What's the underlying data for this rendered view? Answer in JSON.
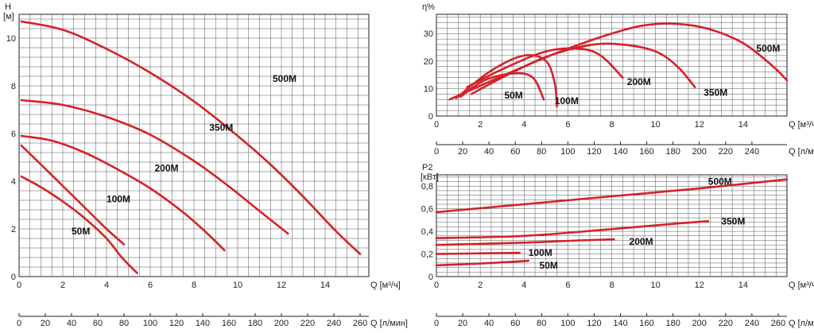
{
  "colors": {
    "curve": "#d62128",
    "grid": "#555555",
    "axis": "#222222",
    "background": "#ffffff"
  },
  "chart_data": [
    {
      "id": "head",
      "type": "line",
      "ylabel": "H",
      "yunit": "[м]",
      "xlabel": "Q [м³/ч]",
      "x2label": "Q [л/мин]",
      "xlim": [
        0,
        16
      ],
      "ylim": [
        0,
        11
      ],
      "x_ticks": [
        0,
        2,
        4,
        6,
        8,
        10,
        12,
        14
      ],
      "y_ticks": [
        0,
        2,
        4,
        6,
        8,
        10
      ],
      "x2_ticks": [
        0,
        20,
        40,
        60,
        80,
        100,
        120,
        140,
        160,
        180,
        200,
        220,
        240,
        260
      ],
      "x2_factor": 16.6667,
      "grid": true,
      "series": [
        {
          "name": "500M",
          "label_at": [
            11.6,
            8.3
          ],
          "points": [
            [
              0.1,
              10.7
            ],
            [
              2,
              10.35
            ],
            [
              4,
              9.55
            ],
            [
              6,
              8.55
            ],
            [
              8,
              7.35
            ],
            [
              10,
              5.9
            ],
            [
              11.5,
              4.7
            ],
            [
              13,
              3.35
            ],
            [
              14.5,
              1.9
            ],
            [
              15.6,
              0.95
            ]
          ]
        },
        {
          "name": "350M",
          "label_at": [
            8.7,
            6.25
          ],
          "points": [
            [
              0.1,
              7.4
            ],
            [
              2,
              7.2
            ],
            [
              4,
              6.7
            ],
            [
              6,
              5.95
            ],
            [
              8,
              4.85
            ],
            [
              9.5,
              3.85
            ],
            [
              11,
              2.75
            ],
            [
              12.3,
              1.8
            ]
          ]
        },
        {
          "name": "200M",
          "label_at": [
            6.2,
            4.55
          ],
          "points": [
            [
              0.1,
              5.9
            ],
            [
              1.5,
              5.7
            ],
            [
              3,
              5.2
            ],
            [
              4.5,
              4.5
            ],
            [
              6,
              3.7
            ],
            [
              7.5,
              2.7
            ],
            [
              8.5,
              1.9
            ],
            [
              9.4,
              1.1
            ]
          ]
        },
        {
          "name": "100M",
          "label_at": [
            4.0,
            3.25
          ],
          "points": [
            [
              0.1,
              5.5
            ],
            [
              1,
              4.7
            ],
            [
              2,
              3.8
            ],
            [
              3,
              2.9
            ],
            [
              4,
              2.0
            ],
            [
              4.8,
              1.35
            ]
          ]
        },
        {
          "name": "50M",
          "label_at": [
            2.4,
            1.9
          ],
          "points": [
            [
              0.1,
              4.2
            ],
            [
              1,
              3.75
            ],
            [
              2,
              3.15
            ],
            [
              3,
              2.45
            ],
            [
              4,
              1.6
            ],
            [
              4.7,
              0.8
            ],
            [
              5.4,
              0.15
            ]
          ]
        }
      ]
    },
    {
      "id": "efficiency",
      "type": "line",
      "ylabel": "η%",
      "xlabel": "Q [м³/ч]",
      "x2label": "Q [л/мин]",
      "xlim": [
        0,
        16
      ],
      "ylim": [
        0,
        37
      ],
      "x_ticks": [
        0,
        2,
        4,
        6,
        8,
        10,
        12,
        14
      ],
      "y_ticks": [
        0,
        10,
        20,
        30
      ],
      "x2_ticks": [
        0,
        20,
        40,
        60,
        80,
        100,
        120,
        140,
        160,
        180,
        200,
        220,
        240
      ],
      "x2_factor": 16.6667,
      "grid": true,
      "series": [
        {
          "name": "500M",
          "label_at": [
            14.6,
            24.5
          ],
          "points": [
            [
              0.6,
              6
            ],
            [
              2,
              11
            ],
            [
              4,
              18
            ],
            [
              6,
              24.5
            ],
            [
              8,
              30
            ],
            [
              9.5,
              33
            ],
            [
              11,
              33.5
            ],
            [
              12.5,
              31.5
            ],
            [
              14,
              26.5
            ],
            [
              15.3,
              18.5
            ],
            [
              16,
              13
            ]
          ]
        },
        {
          "name": "350M",
          "label_at": [
            12.2,
            8.5
          ],
          "points": [
            [
              1.6,
              8
            ],
            [
              3,
              14
            ],
            [
              5,
              21.5
            ],
            [
              7,
              25.8
            ],
            [
              8.5,
              26
            ],
            [
              10,
              23.5
            ],
            [
              11,
              18
            ],
            [
              11.8,
              10.5
            ]
          ]
        },
        {
          "name": "200M",
          "label_at": [
            8.7,
            12.5
          ],
          "points": [
            [
              1.4,
              10.5
            ],
            [
              3,
              17
            ],
            [
              5,
              23.5
            ],
            [
              6.5,
              24.5
            ],
            [
              7.5,
              22
            ],
            [
              8.5,
              14
            ]
          ]
        },
        {
          "name": "100M",
          "label_at": [
            5.4,
            5.5
          ],
          "points": [
            [
              0.9,
              6.5
            ],
            [
              2.5,
              16.5
            ],
            [
              4,
              22
            ],
            [
              5,
              20
            ],
            [
              5.4,
              12
            ],
            [
              5.5,
              3.5
            ]
          ]
        },
        {
          "name": "50M",
          "label_at": [
            3.1,
            7.5
          ],
          "points": [
            [
              1.1,
              7
            ],
            [
              2.2,
              13
            ],
            [
              3.5,
              15.5
            ],
            [
              4.4,
              14
            ],
            [
              4.9,
              6
            ]
          ]
        }
      ]
    },
    {
      "id": "power",
      "type": "line",
      "ylabel": "P2",
      "yunit": "[кВт]",
      "xlabel": "Q [м³/ч]",
      "x2label": "Q [л/мин]",
      "xlim": [
        0,
        16
      ],
      "ylim": [
        0,
        0.9
      ],
      "x_ticks": [
        0,
        2,
        4,
        6,
        8,
        10,
        12,
        14
      ],
      "y_ticks": [
        0,
        0.2,
        0.4,
        0.6,
        0.8
      ],
      "y_tick_labels": [
        "0",
        "0,2",
        "0,4",
        "0,6",
        "0,8"
      ],
      "x2_ticks": [
        0,
        20,
        40,
        60,
        80,
        100,
        120,
        140,
        160,
        180,
        200,
        220,
        240,
        260
      ],
      "x2_factor": 16.6667,
      "grid": true,
      "series": [
        {
          "name": "500M",
          "label_at": [
            12.4,
            0.84
          ],
          "points": [
            [
              0,
              0.57
            ],
            [
              4,
              0.64
            ],
            [
              8,
              0.71
            ],
            [
              12,
              0.78
            ],
            [
              16,
              0.86
            ]
          ]
        },
        {
          "name": "350M",
          "label_at": [
            13.0,
            0.49
          ],
          "points": [
            [
              0,
              0.34
            ],
            [
              4,
              0.36
            ],
            [
              8,
              0.42
            ],
            [
              11,
              0.47
            ],
            [
              12.4,
              0.49
            ]
          ]
        },
        {
          "name": "200M",
          "label_at": [
            8.8,
            0.31
          ],
          "points": [
            [
              0,
              0.28
            ],
            [
              4,
              0.3
            ],
            [
              6.5,
              0.32
            ],
            [
              8.1,
              0.33
            ]
          ]
        },
        {
          "name": "100M",
          "label_at": [
            4.2,
            0.21
          ],
          "points": [
            [
              0,
              0.2
            ],
            [
              2,
              0.205
            ],
            [
              3.8,
              0.21
            ]
          ]
        },
        {
          "name": "50M",
          "label_at": [
            4.7,
            0.1
          ],
          "points": [
            [
              0,
              0.1
            ],
            [
              2,
              0.115
            ],
            [
              4.2,
              0.14
            ]
          ]
        }
      ]
    }
  ]
}
